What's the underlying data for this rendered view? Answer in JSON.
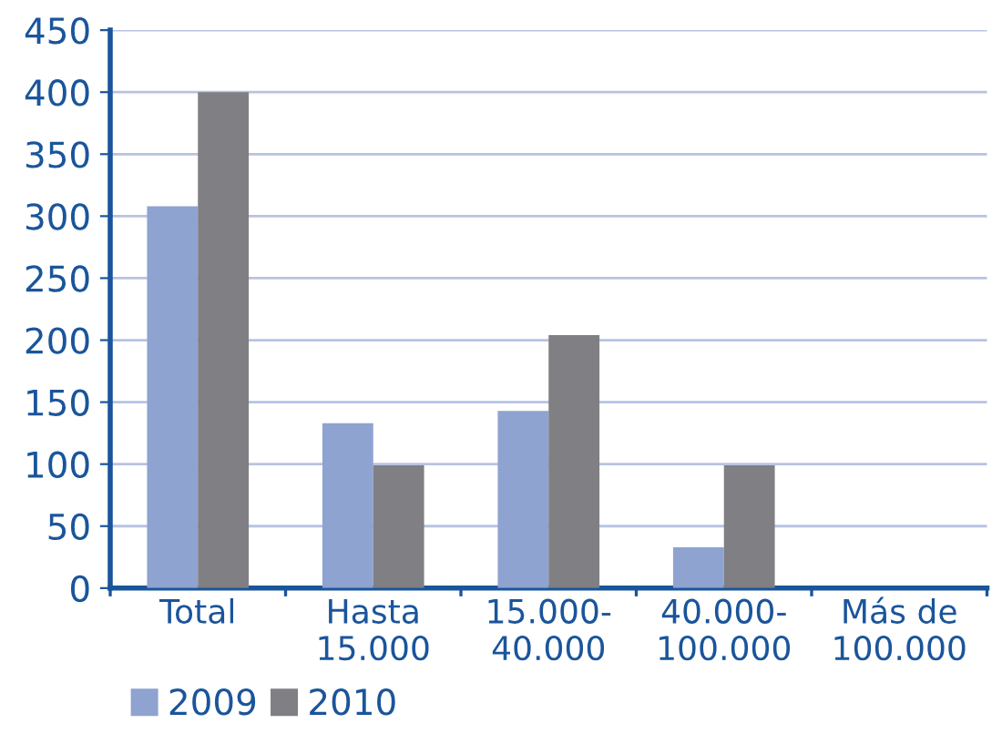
{
  "chart_data": {
    "type": "bar",
    "categories": [
      "Total",
      "Hasta\n15.000",
      "15.000-\n40.000",
      "40.000-\n100.000",
      "Más de\n100.000"
    ],
    "series": [
      {
        "name": "2009",
        "color": "#8fa3d0",
        "values": [
          308,
          133,
          143,
          33,
          0
        ]
      },
      {
        "name": "2010",
        "color": "#7f7f84",
        "values": [
          400,
          99,
          204,
          99,
          0
        ]
      }
    ],
    "ylim": [
      0,
      450
    ],
    "yticks": [
      0,
      50,
      100,
      150,
      200,
      250,
      300,
      350,
      400,
      450
    ],
    "grid": "y",
    "legend": "bottom left"
  }
}
